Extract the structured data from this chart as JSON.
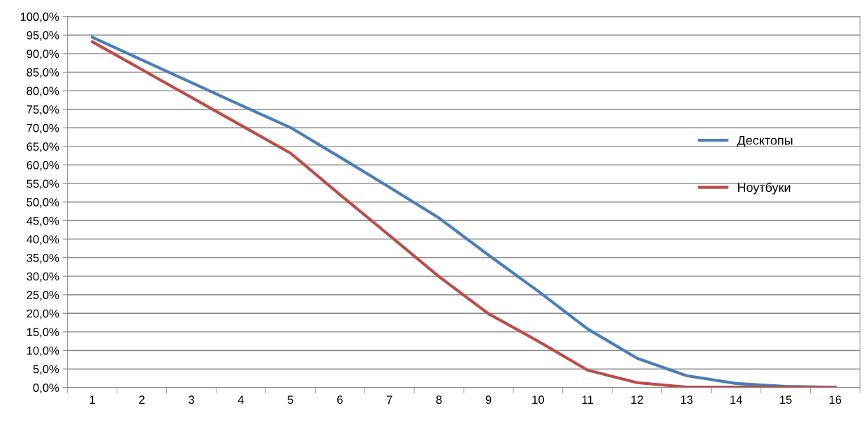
{
  "chart_data": {
    "type": "line",
    "categories": [
      "1",
      "2",
      "3",
      "4",
      "5",
      "6",
      "7",
      "8",
      "9",
      "10",
      "11",
      "12",
      "13",
      "14",
      "15",
      "16"
    ],
    "series": [
      {
        "name": "Десктопы",
        "color": "#4a7ebb",
        "values": [
          94.4,
          88.3,
          82.2,
          76.1,
          70.1,
          62.1,
          54.0,
          45.7,
          35.7,
          26.0,
          15.8,
          7.9,
          3.2,
          1.1,
          0.3,
          0.1
        ]
      },
      {
        "name": "Ноутбуки",
        "color": "#be4b48",
        "values": [
          93.2,
          85.7,
          78.2,
          70.7,
          63.2,
          52.0,
          41.0,
          29.9,
          19.9,
          12.5,
          4.7,
          1.3,
          0.1,
          0.1,
          0.1,
          0.0
        ]
      }
    ],
    "ylim": [
      0,
      100
    ],
    "yticks": [
      {
        "value": 0,
        "label": "0,0%"
      },
      {
        "value": 5,
        "label": "5,0%"
      },
      {
        "value": 10,
        "label": "10,0%"
      },
      {
        "value": 15,
        "label": "15,0%"
      },
      {
        "value": 20,
        "label": "20,0%"
      },
      {
        "value": 25,
        "label": "25,0%"
      },
      {
        "value": 30,
        "label": "30,0%"
      },
      {
        "value": 35,
        "label": "35,0%"
      },
      {
        "value": 40,
        "label": "40,0%"
      },
      {
        "value": 45,
        "label": "45,0%"
      },
      {
        "value": 50,
        "label": "50,0%"
      },
      {
        "value": 55,
        "label": "55,0%"
      },
      {
        "value": 60,
        "label": "60,0%"
      },
      {
        "value": 65,
        "label": "65,0%"
      },
      {
        "value": 70,
        "label": "70,0%"
      },
      {
        "value": 75,
        "label": "75,0%"
      },
      {
        "value": 80,
        "label": "80,0%"
      },
      {
        "value": 85,
        "label": "85,0%"
      },
      {
        "value": 90,
        "label": "90,0%"
      },
      {
        "value": 95,
        "label": "95,0%"
      },
      {
        "value": 100,
        "label": "100,0%"
      }
    ],
    "grid": "y",
    "legend": "right",
    "marker": "none",
    "line_style": "solid"
  }
}
